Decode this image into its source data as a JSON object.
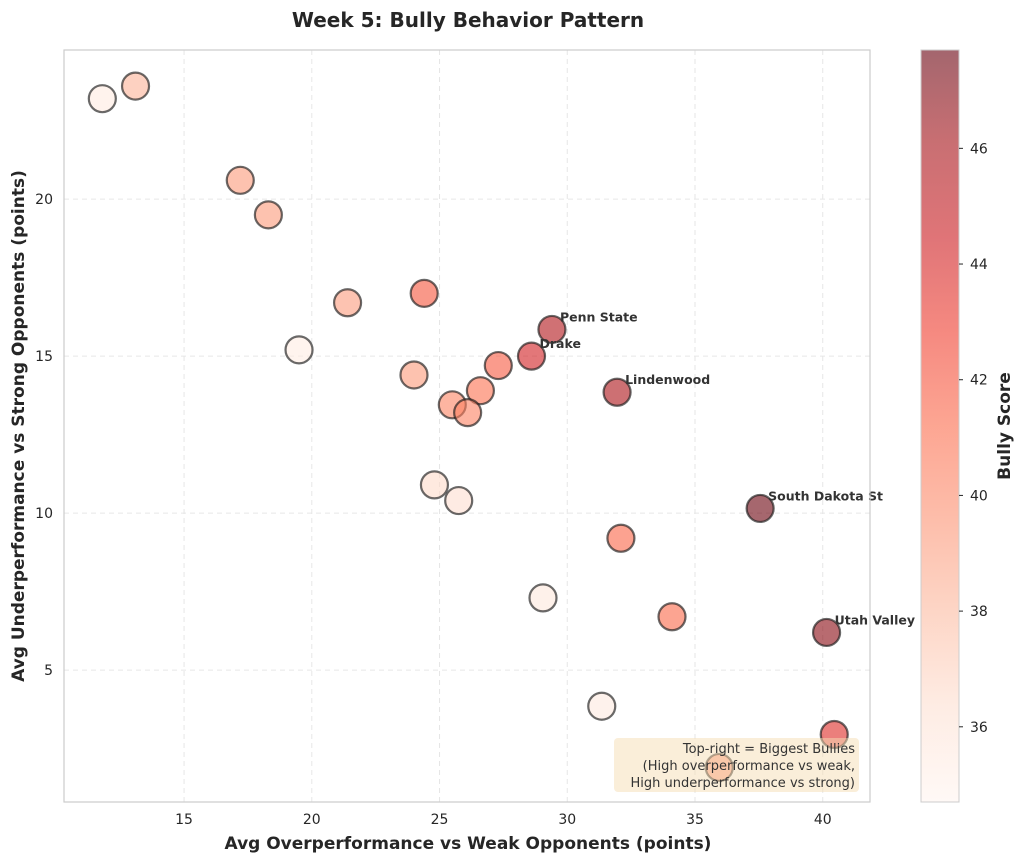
{
  "chart_data": {
    "type": "scatter",
    "title": "Week 5: Bully Behavior Pattern",
    "xlabel": "Avg Overperformance vs Weak Opponents (points)",
    "ylabel": "Avg Underperformance vs Strong Opponents (points)",
    "xlim": [
      10.3,
      41.85
    ],
    "ylim": [
      0.8,
      24.75
    ],
    "xticks": [
      15,
      20,
      25,
      30,
      35,
      40
    ],
    "yticks": [
      5,
      10,
      15,
      20
    ],
    "grid": true,
    "colorbar": {
      "label": "Bully Score",
      "range": [
        34.7,
        47.7
      ],
      "ticks": [
        36,
        38,
        40,
        42,
        44,
        46
      ],
      "colormap": "Reds",
      "colormap_stops": [
        "#fff5f0",
        "#fee0d2",
        "#fcbba1",
        "#fc9272",
        "#fb6a4a",
        "#ef3b2c",
        "#cb181d",
        "#a50f15",
        "#67000d"
      ],
      "alpha": 0.6
    },
    "points": [
      {
        "x": 11.8,
        "y": 23.2,
        "score": 35.5,
        "label": ""
      },
      {
        "x": 13.1,
        "y": 23.6,
        "score": 38.3,
        "label": ""
      },
      {
        "x": 17.2,
        "y": 20.6,
        "score": 39.3,
        "label": ""
      },
      {
        "x": 18.3,
        "y": 19.5,
        "score": 39.3,
        "label": ""
      },
      {
        "x": 21.4,
        "y": 16.7,
        "score": 39.2,
        "label": ""
      },
      {
        "x": 24.4,
        "y": 17.0,
        "score": 42.0,
        "label": ""
      },
      {
        "x": 19.5,
        "y": 15.2,
        "score": 35.4,
        "label": ""
      },
      {
        "x": 29.4,
        "y": 15.85,
        "score": 45.6,
        "label": "Penn State"
      },
      {
        "x": 28.6,
        "y": 15.0,
        "score": 44.2,
        "label": "Drake"
      },
      {
        "x": 27.3,
        "y": 14.7,
        "score": 41.8,
        "label": ""
      },
      {
        "x": 26.6,
        "y": 13.9,
        "score": 41.0,
        "label": ""
      },
      {
        "x": 24.0,
        "y": 14.4,
        "score": 39.3,
        "label": ""
      },
      {
        "x": 25.5,
        "y": 13.45,
        "score": 40.2,
        "label": ""
      },
      {
        "x": 26.1,
        "y": 13.2,
        "score": 40.3,
        "label": ""
      },
      {
        "x": 31.95,
        "y": 13.85,
        "score": 45.8,
        "label": "Lindenwood"
      },
      {
        "x": 24.8,
        "y": 10.9,
        "score": 36.6,
        "label": ""
      },
      {
        "x": 25.75,
        "y": 10.4,
        "score": 36.4,
        "label": ""
      },
      {
        "x": 37.55,
        "y": 10.15,
        "score": 47.6,
        "label": "South Dakota St"
      },
      {
        "x": 32.1,
        "y": 9.2,
        "score": 41.4,
        "label": ""
      },
      {
        "x": 29.05,
        "y": 7.3,
        "score": 35.8,
        "label": ""
      },
      {
        "x": 34.1,
        "y": 6.7,
        "score": 41.3,
        "label": ""
      },
      {
        "x": 40.15,
        "y": 6.2,
        "score": 46.8,
        "label": "Utah Valley"
      },
      {
        "x": 31.35,
        "y": 3.85,
        "score": 35.6,
        "label": ""
      },
      {
        "x": 40.45,
        "y": 2.95,
        "score": 43.6,
        "label": ""
      },
      {
        "x": 35.95,
        "y": 1.9,
        "score": 40.3,
        "label": ""
      }
    ],
    "annotation": {
      "lines": [
        "Top-right = Biggest Bullies",
        "(High overperformance vs weak,",
        "High underperformance vs strong)"
      ],
      "position": "bottom-right",
      "background": "#f5deb3"
    }
  }
}
